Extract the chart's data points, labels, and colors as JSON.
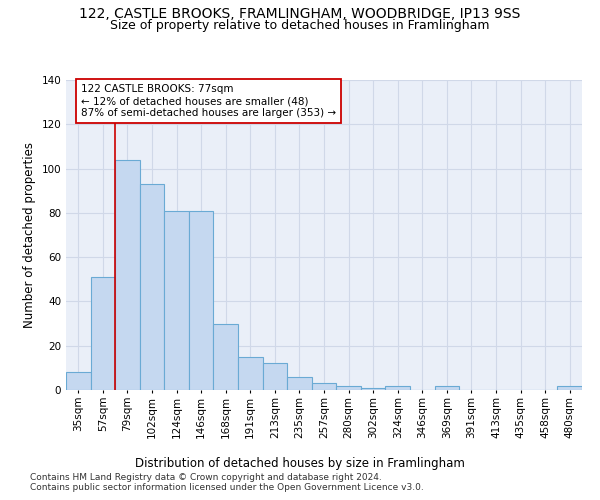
{
  "title1": "122, CASTLE BROOKS, FRAMLINGHAM, WOODBRIDGE, IP13 9SS",
  "title2": "Size of property relative to detached houses in Framlingham",
  "xlabel": "Distribution of detached houses by size in Framlingham",
  "ylabel": "Number of detached properties",
  "categories": [
    "35sqm",
    "57sqm",
    "79sqm",
    "102sqm",
    "124sqm",
    "146sqm",
    "168sqm",
    "191sqm",
    "213sqm",
    "235sqm",
    "257sqm",
    "280sqm",
    "302sqm",
    "324sqm",
    "346sqm",
    "369sqm",
    "391sqm",
    "413sqm",
    "435sqm",
    "458sqm",
    "480sqm"
  ],
  "values": [
    8,
    51,
    104,
    93,
    81,
    81,
    30,
    15,
    12,
    6,
    3,
    2,
    1,
    2,
    0,
    2,
    0,
    0,
    0,
    0,
    2
  ],
  "bar_color": "#c5d8f0",
  "bar_edge_color": "#6aaad4",
  "annotation_text": "122 CASTLE BROOKS: 77sqm\n← 12% of detached houses are smaller (48)\n87% of semi-detached houses are larger (353) →",
  "annotation_box_color": "#ffffff",
  "annotation_box_edge": "#cc0000",
  "vline_color": "#cc0000",
  "vline_x_bin": 1.5,
  "ylim": [
    0,
    140
  ],
  "yticks": [
    0,
    20,
    40,
    60,
    80,
    100,
    120,
    140
  ],
  "footer": "Contains HM Land Registry data © Crown copyright and database right 2024.\nContains public sector information licensed under the Open Government Licence v3.0.",
  "grid_color": "#d0d8e8",
  "bg_color": "#eaeff8",
  "title1_fontsize": 10,
  "title2_fontsize": 9,
  "xlabel_fontsize": 8.5,
  "ylabel_fontsize": 8.5,
  "tick_fontsize": 7.5,
  "footer_fontsize": 6.5
}
